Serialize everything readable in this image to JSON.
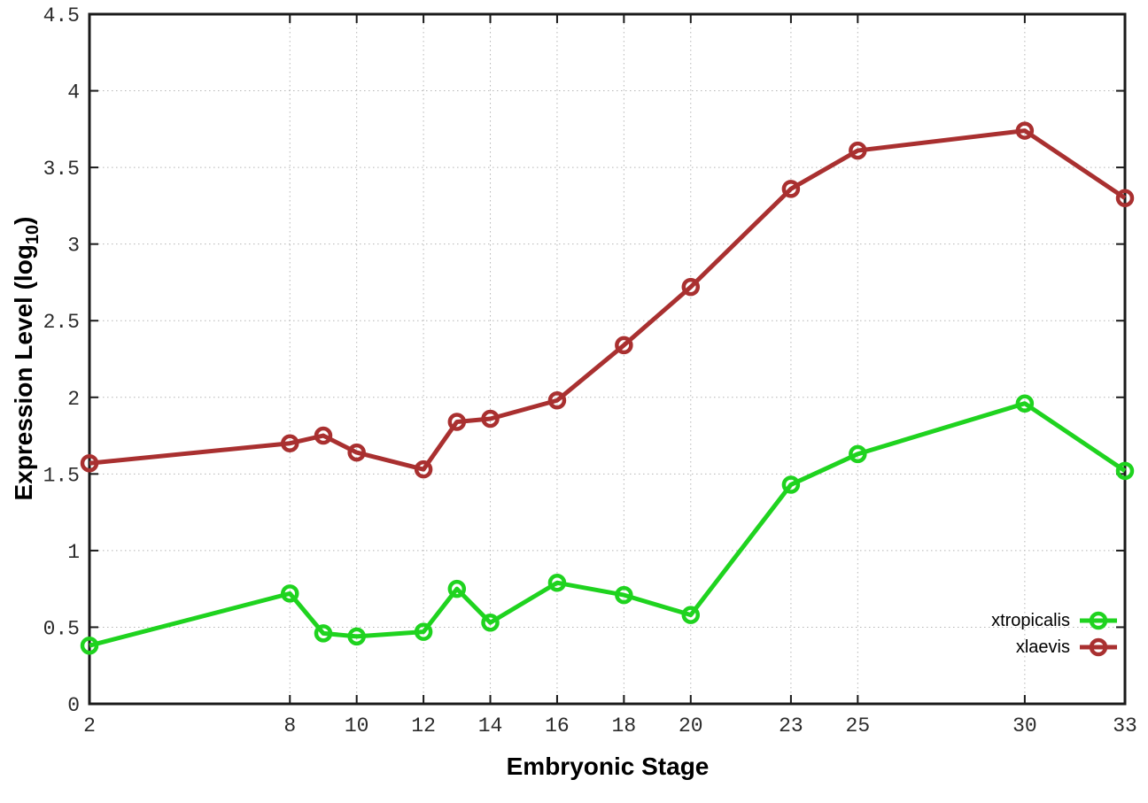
{
  "chart_data": {
    "type": "line",
    "title": "",
    "xlabel": "Embryonic Stage",
    "ylabel": "Expression Level (log10)",
    "ylabel_parts": {
      "pre": "Expression Level (log",
      "sub": "10",
      "post": ")"
    },
    "xlim": [
      2,
      33
    ],
    "ylim": [
      0,
      4.5
    ],
    "grid": true,
    "legend_position": "bottom-right",
    "x_ticks": [
      2,
      8,
      10,
      12,
      14,
      16,
      18,
      20,
      23,
      25,
      30,
      33
    ],
    "x_tick_labels": [
      "2",
      "8",
      "10",
      "12",
      "14",
      "16",
      "18",
      "20",
      "23",
      "25",
      "30",
      "33"
    ],
    "y_ticks": [
      0,
      0.5,
      1,
      1.5,
      2,
      2.5,
      3,
      3.5,
      4,
      4.5
    ],
    "y_tick_labels": [
      "0",
      "0.5",
      "1",
      "1.5",
      "2",
      "2.5",
      "3",
      "3.5",
      "4",
      "4.5"
    ],
    "x": [
      2,
      8,
      9,
      10,
      12,
      13,
      14,
      16,
      18,
      20,
      23,
      25,
      30,
      33
    ],
    "series": [
      {
        "name": "xtropicalis",
        "color": "#1fd31f",
        "values": [
          0.38,
          0.72,
          0.46,
          0.44,
          0.47,
          0.75,
          0.53,
          0.79,
          0.71,
          0.58,
          1.43,
          1.63,
          1.96,
          1.52
        ]
      },
      {
        "name": "xlaevis",
        "color": "#a93030",
        "values": [
          1.57,
          1.7,
          1.75,
          1.64,
          1.53,
          1.84,
          1.86,
          1.98,
          2.34,
          2.72,
          3.36,
          3.61,
          3.74,
          3.3
        ]
      }
    ]
  }
}
